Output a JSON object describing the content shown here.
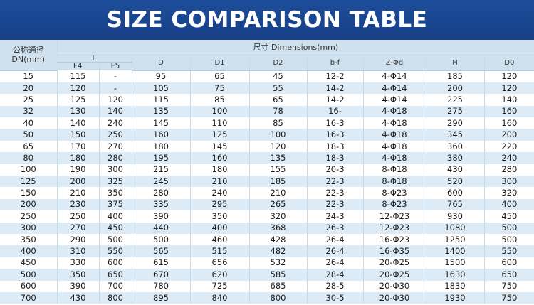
{
  "title": "SIZE COMPARISON TABLE",
  "header": {
    "dn_line1": "公称通径",
    "dn_line2": "DN(mm)",
    "dimensions": "尺寸 Dimensions(mm)",
    "l_group": "L",
    "columns": [
      "F4",
      "F5",
      "D",
      "D1",
      "D2",
      "b-f",
      "Z-Φd",
      "H",
      "D0"
    ]
  },
  "rows": [
    [
      "15",
      "115",
      "-",
      "95",
      "65",
      "45",
      "12-2",
      "4-Φ14",
      "185",
      "120"
    ],
    [
      "20",
      "120",
      "-",
      "105",
      "75",
      "55",
      "14-2",
      "4-Φ14",
      "200",
      "120"
    ],
    [
      "25",
      "125",
      "120",
      "115",
      "85",
      "65",
      "14-2",
      "4-Φ14",
      "225",
      "140"
    ],
    [
      "32",
      "130",
      "140",
      "135",
      "100",
      "78",
      "16-",
      "4-Φ18",
      "275",
      "160"
    ],
    [
      "40",
      "140",
      "240",
      "145",
      "110",
      "85",
      "16-3",
      "4-Φ18",
      "290",
      "160"
    ],
    [
      "50",
      "150",
      "250",
      "160",
      "125",
      "100",
      "16-3",
      "4-Φ18",
      "345",
      "200"
    ],
    [
      "65",
      "170",
      "270",
      "180",
      "145",
      "120",
      "18-3",
      "4-Φ18",
      "360",
      "220"
    ],
    [
      "80",
      "180",
      "280",
      "195",
      "160",
      "135",
      "18-3",
      "4-Φ18",
      "380",
      "240"
    ],
    [
      "100",
      "190",
      "300",
      "215",
      "180",
      "155",
      "20-3",
      "8-Φ18",
      "430",
      "280"
    ],
    [
      "125",
      "200",
      "325",
      "245",
      "210",
      "185",
      "22-3",
      "8-Φ18",
      "520",
      "300"
    ],
    [
      "150",
      "210",
      "350",
      "280",
      "240",
      "210",
      "22-3",
      "8-Φ23",
      "600",
      "320"
    ],
    [
      "200",
      "230",
      "375",
      "335",
      "295",
      "265",
      "22-3",
      "8-Φ23",
      "765",
      "400"
    ],
    [
      "250",
      "250",
      "400",
      "390",
      "350",
      "320",
      "24-3",
      "12-Φ23",
      "930",
      "450"
    ],
    [
      "300",
      "270",
      "450",
      "440",
      "400",
      "368",
      "26-3",
      "12-Φ23",
      "1080",
      "500"
    ],
    [
      "350",
      "290",
      "500",
      "500",
      "460",
      "428",
      "26-4",
      "16-Φ23",
      "1250",
      "500"
    ],
    [
      "400",
      "310",
      "550",
      "565",
      "515",
      "482",
      "26-4",
      "16-Φ35",
      "1400",
      "550"
    ],
    [
      "450",
      "330",
      "600",
      "615",
      "656",
      "532",
      "26-4",
      "20-Φ25",
      "1500",
      "600"
    ],
    [
      "500",
      "350",
      "650",
      "670",
      "620",
      "585",
      "28-4",
      "20-Φ25",
      "1630",
      "650"
    ],
    [
      "600",
      "390",
      "700",
      "780",
      "725",
      "685",
      "28-5",
      "20-Φ30",
      "1830",
      "750"
    ],
    [
      "700",
      "430",
      "800",
      "895",
      "840",
      "800",
      "30-5",
      "20-Φ30",
      "1930",
      "750"
    ]
  ]
}
